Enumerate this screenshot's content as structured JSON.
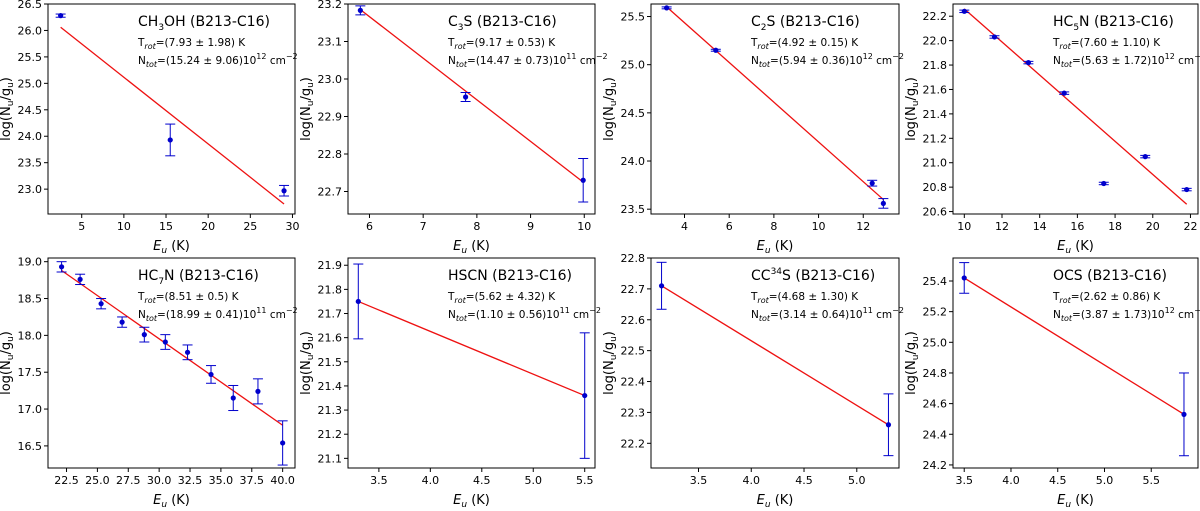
{
  "chart_data": [
    {
      "type": "scatter",
      "title": "CH3OH (B213-C16)",
      "title_main": "CH",
      "title_sub": "3",
      "title_rest": "OH (B213-C16)",
      "title_sup": "",
      "trot_text": "=(7.93 ± 1.98) K",
      "ntot_text": "=(15.24 ± 9.06)10",
      "ntot_exp": "12",
      "xlabel_main": "E",
      "xlabel_sub": "u",
      "xlabel_unit": " (K)",
      "ylabel": "log(Nu/gu)",
      "xlim": [
        1.0,
        30.3
      ],
      "ylim": [
        22.53,
        26.5
      ],
      "xticks": [
        5,
        10,
        15,
        20,
        25,
        30
      ],
      "xtick_labels": [
        "5",
        "10",
        "15",
        "20",
        "25",
        "30"
      ],
      "yticks": [
        23.0,
        23.5,
        24.0,
        24.5,
        25.0,
        25.5,
        26.0,
        26.5
      ],
      "ytick_labels": [
        "23.0",
        "23.5",
        "24.0",
        "24.5",
        "25.0",
        "25.5",
        "26.0",
        "26.5"
      ],
      "points": [
        {
          "x": 2.5,
          "y": 26.28,
          "err": 0.03,
          "xerr": 0.7
        },
        {
          "x": 15.5,
          "y": 23.93,
          "err": 0.3,
          "xerr": 0.7
        },
        {
          "x": 29.0,
          "y": 22.97,
          "err": 0.1,
          "xerr": 0.7
        }
      ],
      "fit": {
        "x": [
          2.5,
          29.0
        ],
        "y": [
          26.06,
          22.72
        ]
      },
      "legend_pos": "top-right"
    },
    {
      "type": "scatter",
      "title": "C3S (B213-C16)",
      "title_main": "C",
      "title_sub": "3",
      "title_rest": "S (B213-C16)",
      "title_sup": "",
      "trot_text": "=(9.17 ± 0.53) K",
      "ntot_text": "=(14.47 ± 0.73)10",
      "ntot_exp": "11",
      "xlabel_main": "E",
      "xlabel_sub": "u",
      "xlabel_unit": " (K)",
      "ylabel": "log(Nu/gu)",
      "xlim": [
        5.6,
        10.2
      ],
      "ylim": [
        22.64,
        23.2
      ],
      "xticks": [
        6,
        7,
        8,
        9,
        10
      ],
      "xtick_labels": [
        "6",
        "7",
        "8",
        "9",
        "10"
      ],
      "yticks": [
        22.7,
        22.8,
        22.9,
        23.0,
        23.1,
        23.2
      ],
      "ytick_labels": [
        "22.7",
        "22.8",
        "22.9",
        "23.0",
        "23.1",
        "23.2"
      ],
      "points": [
        {
          "x": 5.83,
          "y": 23.183,
          "err": 0.012,
          "xerr": 0.0
        },
        {
          "x": 7.79,
          "y": 22.952,
          "err": 0.012,
          "xerr": 0.0
        },
        {
          "x": 9.98,
          "y": 22.73,
          "err": 0.058,
          "xerr": 0.0
        }
      ],
      "fit": {
        "x": [
          5.83,
          9.98
        ],
        "y": [
          23.185,
          22.725
        ]
      },
      "legend_pos": "top-right"
    },
    {
      "type": "scatter",
      "title": "C2S (B213-C16)",
      "title_main": "C",
      "title_sub": "2",
      "title_rest": "S (B213-C16)",
      "title_sup": "",
      "trot_text": "=(4.92 ± 0.15) K",
      "ntot_text": "=(5.94 ± 0.36)10",
      "ntot_exp": "12",
      "xlabel_main": "E",
      "xlabel_sub": "u",
      "xlabel_unit": " (K)",
      "ylabel": "log(Nu/gu)",
      "xlim": [
        2.5,
        13.6
      ],
      "ylim": [
        23.45,
        25.63
      ],
      "xticks": [
        4,
        6,
        8,
        10,
        12
      ],
      "xtick_labels": [
        "4",
        "6",
        "8",
        "10",
        "12"
      ],
      "yticks": [
        23.5,
        24.0,
        24.5,
        25.0,
        25.5
      ],
      "ytick_labels": [
        "23.5",
        "24.0",
        "24.5",
        "25.0",
        "25.5"
      ],
      "points": [
        {
          "x": 3.2,
          "y": 25.59,
          "err": 0.01,
          "xerr": 0.25
        },
        {
          "x": 5.4,
          "y": 25.15,
          "err": 0.01,
          "xerr": 0.25
        },
        {
          "x": 12.4,
          "y": 23.77,
          "err": 0.03,
          "xerr": 0.25
        },
        {
          "x": 12.9,
          "y": 23.56,
          "err": 0.05,
          "xerr": 0.25
        }
      ],
      "fit": {
        "x": [
          3.2,
          12.9
        ],
        "y": [
          25.6,
          23.6
        ]
      },
      "legend_pos": "top-right"
    },
    {
      "type": "scatter",
      "title": "HC5N (B213-C16)",
      "title_main": "HC",
      "title_sub": "5",
      "title_rest": "N (B213-C16)",
      "title_sup": "",
      "trot_text": "=(7.60 ± 1.10) K",
      "ntot_text": "=(5.63 ± 1.72)10",
      "ntot_exp": "12",
      "xlabel_main": "E",
      "xlabel_sub": "u",
      "xlabel_unit": " (K)",
      "ylabel": "log(Nu/gu)",
      "xlim": [
        9.4,
        22.4
      ],
      "ylim": [
        20.58,
        22.3
      ],
      "xticks": [
        10,
        12,
        14,
        16,
        18,
        20,
        22
      ],
      "xtick_labels": [
        "10",
        "12",
        "14",
        "16",
        "18",
        "20",
        "22"
      ],
      "yticks": [
        20.6,
        20.8,
        21.0,
        21.2,
        21.4,
        21.6,
        21.8,
        22.0,
        22.2
      ],
      "ytick_labels": [
        "20.6",
        "20.8",
        "21.0",
        "21.2",
        "21.4",
        "21.6",
        "21.8",
        "22.0",
        "22.2"
      ],
      "points": [
        {
          "x": 10.0,
          "y": 22.24,
          "err": 0.01,
          "xerr": 0.3
        },
        {
          "x": 11.6,
          "y": 22.03,
          "err": 0.01,
          "xerr": 0.3
        },
        {
          "x": 13.4,
          "y": 21.82,
          "err": 0.01,
          "xerr": 0.3
        },
        {
          "x": 15.3,
          "y": 21.57,
          "err": 0.01,
          "xerr": 0.3
        },
        {
          "x": 17.4,
          "y": 20.83,
          "err": 0.01,
          "xerr": 0.3
        },
        {
          "x": 19.6,
          "y": 21.05,
          "err": 0.01,
          "xerr": 0.3
        },
        {
          "x": 21.8,
          "y": 20.78,
          "err": 0.01,
          "xerr": 0.3
        }
      ],
      "fit": {
        "x": [
          10.0,
          21.8
        ],
        "y": [
          22.26,
          20.66
        ]
      },
      "legend_pos": "top-right"
    },
    {
      "type": "scatter",
      "title": "HC7N (B213-C16)",
      "title_main": "HC",
      "title_sub": "7",
      "title_rest": "N (B213-C16)",
      "title_sup": "",
      "trot_text": "=(8.51 ± 0.5) K",
      "ntot_text": "=(18.99 ± 0.41)10",
      "ntot_exp": "11",
      "xlabel_main": "E",
      "xlabel_sub": "u",
      "xlabel_unit": " (K)",
      "ylabel": "log(Nu/gu)",
      "xlim": [
        21.0,
        41.0
      ],
      "ylim": [
        16.2,
        19.05
      ],
      "xticks": [
        22.5,
        25.0,
        27.5,
        30.0,
        32.5,
        35.0,
        37.5,
        40.0
      ],
      "xtick_labels": [
        "22.5",
        "25.0",
        "27.5",
        "30.0",
        "32.5",
        "35.0",
        "37.5",
        "40.0"
      ],
      "yticks": [
        16.5,
        17.0,
        17.5,
        18.0,
        18.5,
        19.0
      ],
      "ytick_labels": [
        "16.5",
        "17.0",
        "17.5",
        "18.0",
        "18.5",
        "19.0"
      ],
      "points": [
        {
          "x": 22.1,
          "y": 18.93,
          "err": 0.07,
          "xerr": 0.5
        },
        {
          "x": 23.6,
          "y": 18.76,
          "err": 0.07,
          "xerr": 0.5
        },
        {
          "x": 25.3,
          "y": 18.43,
          "err": 0.07,
          "xerr": 0.5
        },
        {
          "x": 27.0,
          "y": 18.18,
          "err": 0.07,
          "xerr": 0.5
        },
        {
          "x": 28.8,
          "y": 18.01,
          "err": 0.1,
          "xerr": 0.5
        },
        {
          "x": 30.5,
          "y": 17.91,
          "err": 0.1,
          "xerr": 0.5
        },
        {
          "x": 32.3,
          "y": 17.77,
          "err": 0.1,
          "xerr": 0.5
        },
        {
          "x": 34.2,
          "y": 17.47,
          "err": 0.12,
          "xerr": 0.5
        },
        {
          "x": 36.0,
          "y": 17.15,
          "err": 0.17,
          "xerr": 0.5
        },
        {
          "x": 38.0,
          "y": 17.24,
          "err": 0.17,
          "xerr": 0.5
        },
        {
          "x": 40.0,
          "y": 16.54,
          "err": 0.3,
          "xerr": 0.5
        }
      ],
      "fit": {
        "x": [
          22.1,
          40.0
        ],
        "y": [
          18.88,
          16.78
        ]
      },
      "legend_pos": "top-right"
    },
    {
      "type": "scatter",
      "title": "HSCN (B213-C16)",
      "title_main": "HSCN (B213-C16)",
      "title_sub": "",
      "title_rest": "",
      "title_sup": "",
      "trot_text": "=(5.62 ± 4.32) K",
      "ntot_text": "=(1.10 ± 0.56)10",
      "ntot_exp": "11",
      "xlabel_main": "E",
      "xlabel_sub": "u",
      "xlabel_unit": " (K)",
      "ylabel": "log(Nu/gu)",
      "xlim": [
        3.2,
        5.6
      ],
      "ylim": [
        21.06,
        21.93
      ],
      "xticks": [
        3.5,
        4.0,
        4.5,
        5.0,
        5.5
      ],
      "xtick_labels": [
        "3.5",
        "4.0",
        "4.5",
        "5.0",
        "5.5"
      ],
      "yticks": [
        21.1,
        21.2,
        21.3,
        21.4,
        21.5,
        21.6,
        21.7,
        21.8,
        21.9
      ],
      "ytick_labels": [
        "21.1",
        "21.2",
        "21.3",
        "21.4",
        "21.5",
        "21.6",
        "21.7",
        "21.8",
        "21.9"
      ],
      "points": [
        {
          "x": 3.3,
          "y": 21.75,
          "err": 0.155,
          "xerr": 0.0
        },
        {
          "x": 5.5,
          "y": 21.36,
          "err": 0.26,
          "xerr": 0.0
        }
      ],
      "fit": {
        "x": [
          3.3,
          5.5
        ],
        "y": [
          21.75,
          21.36
        ]
      },
      "legend_pos": "top-right"
    },
    {
      "type": "scatter",
      "title": "CC34S (B213-C16)",
      "title_main": "CC",
      "title_sub": "",
      "title_rest": "S (B213-C16)",
      "title_sup": "34",
      "trot_text": "=(4.68 ± 1.30) K",
      "ntot_text": "=(3.14 ± 0.64)10",
      "ntot_exp": "11",
      "xlabel_main": "E",
      "xlabel_sub": "u",
      "xlabel_unit": " (K)",
      "ylabel": "log(Nu/gu)",
      "xlim": [
        3.05,
        5.4
      ],
      "ylim": [
        22.12,
        22.8
      ],
      "xticks": [
        3.5,
        4.0,
        4.5,
        5.0
      ],
      "xtick_labels": [
        "3.5",
        "4.0",
        "4.5",
        "5.0"
      ],
      "yticks": [
        22.2,
        22.3,
        22.4,
        22.5,
        22.6,
        22.7,
        22.8
      ],
      "ytick_labels": [
        "22.2",
        "22.3",
        "22.4",
        "22.5",
        "22.6",
        "22.7",
        "22.8"
      ],
      "points": [
        {
          "x": 3.15,
          "y": 22.71,
          "err": 0.076,
          "xerr": 0.0
        },
        {
          "x": 5.3,
          "y": 22.26,
          "err": 0.1,
          "xerr": 0.0
        }
      ],
      "fit": {
        "x": [
          3.15,
          5.3
        ],
        "y": [
          22.71,
          22.26
        ]
      },
      "legend_pos": "top-right"
    },
    {
      "type": "scatter",
      "title": "OCS (B213-C16)",
      "title_main": "OCS (B213-C16)",
      "title_sub": "",
      "title_rest": "",
      "title_sup": "",
      "trot_text": "=(2.62 ± 0.86) K",
      "ntot_text": "=(3.87 ± 1.73)10",
      "ntot_exp": "12",
      "xlabel_main": "E",
      "xlabel_sub": "u",
      "xlabel_unit": " (K)",
      "ylabel": "log(Nu/gu)",
      "xlim": [
        3.38,
        6.0
      ],
      "ylim": [
        24.18,
        25.55
      ],
      "xticks": [
        3.5,
        4.0,
        4.5,
        5.0,
        5.5
      ],
      "xtick_labels": [
        "3.5",
        "4.0",
        "4.5",
        "5.0",
        "5.5"
      ],
      "yticks": [
        24.2,
        24.4,
        24.6,
        24.8,
        25.0,
        25.2,
        25.4
      ],
      "ytick_labels": [
        "24.2",
        "24.4",
        "24.6",
        "24.8",
        "25.0",
        "25.2",
        "25.4"
      ],
      "points": [
        {
          "x": 3.5,
          "y": 25.42,
          "err": 0.1,
          "xerr": 0.0
        },
        {
          "x": 5.85,
          "y": 24.53,
          "err": 0.27,
          "xerr": 0.0
        }
      ],
      "fit": {
        "x": [
          3.5,
          5.85
        ],
        "y": [
          25.42,
          24.53
        ]
      },
      "legend_pos": "top-right"
    }
  ],
  "colors": {
    "points": "#0000cc",
    "fit": "#ee1111",
    "axes": "#000000"
  }
}
